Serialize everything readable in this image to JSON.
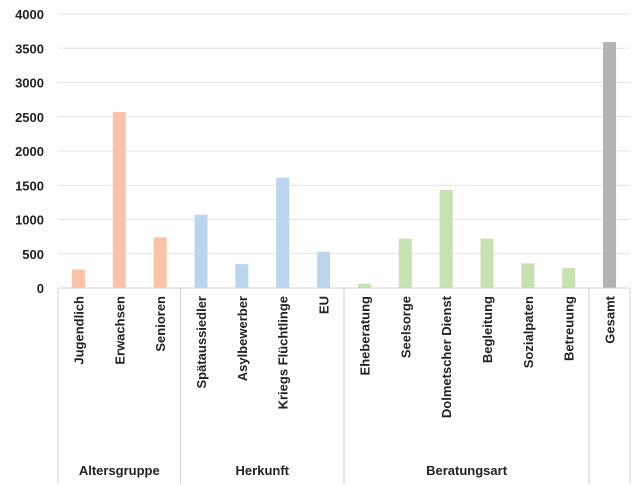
{
  "chart_data": {
    "type": "bar",
    "title": "",
    "xlabel": "",
    "ylabel": "",
    "ylim": [
      0,
      4000
    ],
    "yticks": [
      0,
      500,
      1000,
      1500,
      2000,
      2500,
      3000,
      3500,
      4000
    ],
    "grid": true,
    "legend": "none",
    "categories": [
      "Jugendlich",
      "Erwachsen",
      "Senioren",
      "Spätaussiedler",
      "Asylbewerber",
      "Kriegs Flüchtlinge",
      "EU",
      "Eheberatung",
      "Seelsorge",
      "Dolmetscher Dienst",
      "Begleitung",
      "Sozialpaten",
      "Betreuung",
      "Gesamt"
    ],
    "values": [
      270,
      2570,
      740,
      1070,
      350,
      1610,
      530,
      60,
      720,
      1430,
      720,
      360,
      290,
      3590
    ],
    "groups": [
      {
        "label": "Altersgruppe",
        "start": 0,
        "end": 2,
        "color": "#f8c3a6"
      },
      {
        "label": "Herkunft",
        "start": 3,
        "end": 6,
        "color": "#bcd5ef"
      },
      {
        "label": "Beratungsart",
        "start": 7,
        "end": 12,
        "color": "#c6e2b0"
      },
      {
        "label": "",
        "start": 13,
        "end": 13,
        "color": "#b3b3b3"
      }
    ]
  }
}
